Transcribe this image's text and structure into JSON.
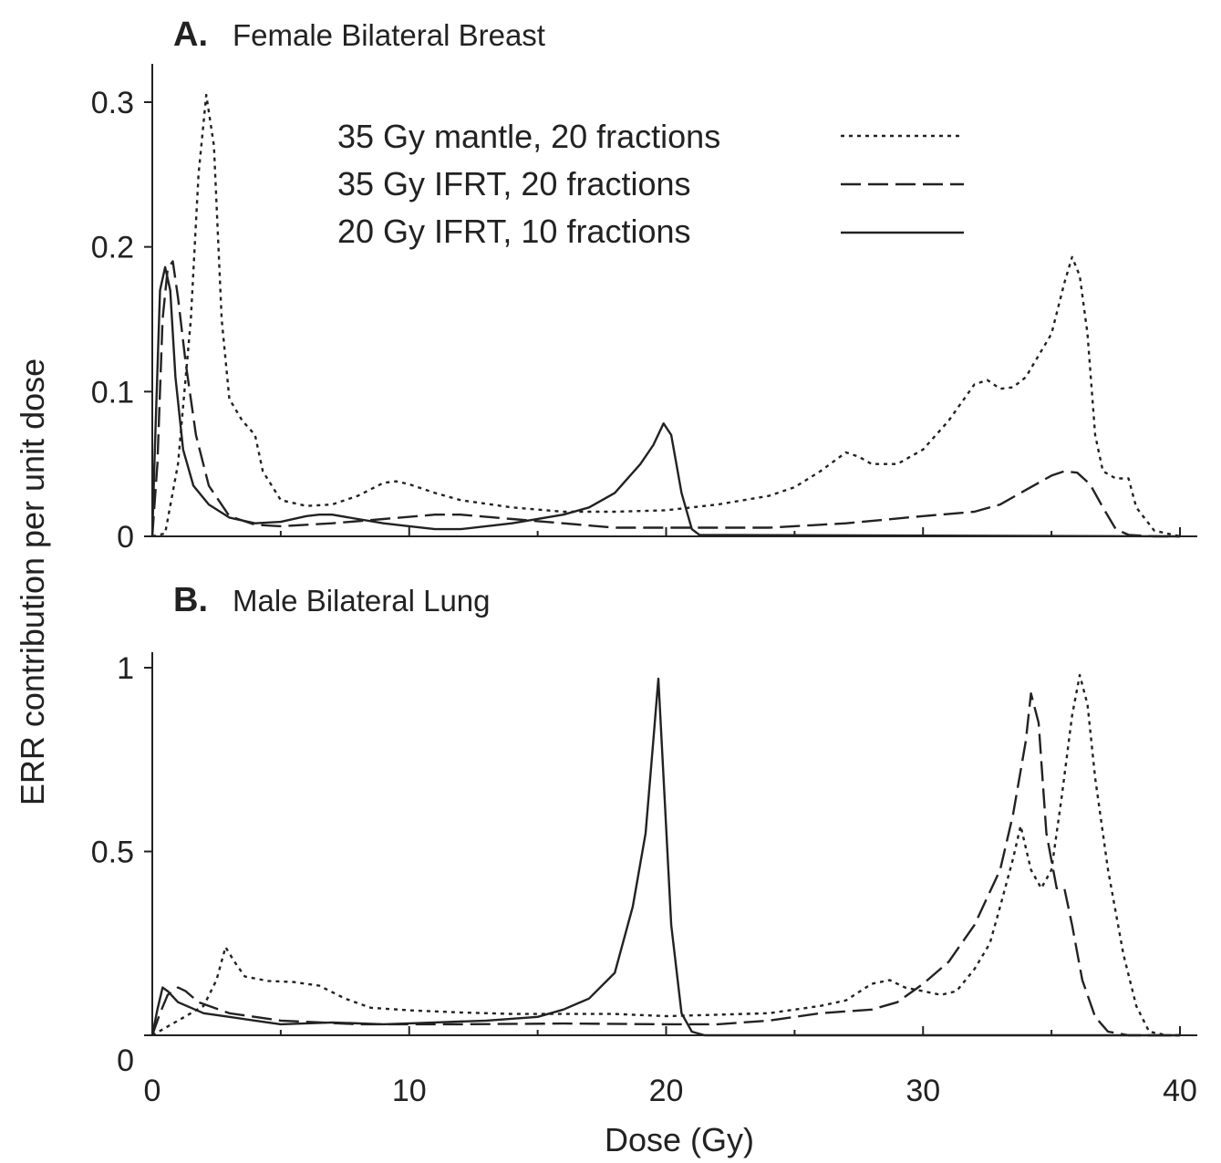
{
  "figure": {
    "ylabel": "ERR contribution  per unit dose",
    "xlabel": "Dose (Gy)"
  },
  "legend": [
    {
      "label": "35 Gy mantle, 20 fractions",
      "style": "dotted"
    },
    {
      "label": "35 Gy IFRT, 20 fractions",
      "style": "dashed"
    },
    {
      "label": "20 Gy IFRT, 10 fractions",
      "style": "solid"
    }
  ],
  "chart_data": [
    {
      "type": "line",
      "panel_letter": "A.",
      "title": "Female Bilateral Breast",
      "xlim": [
        0,
        40
      ],
      "ylim": [
        0,
        0.32
      ],
      "yticks": [
        "0",
        "0.1",
        "0.2",
        "0.3"
      ],
      "ytick_values": [
        0,
        0.1,
        0.2,
        0.3
      ],
      "series": [
        {
          "name": "35 Gy mantle, 20 fractions",
          "style": "dotted",
          "points": [
            [
              0,
              0
            ],
            [
              0.5,
              0.002
            ],
            [
              1,
              0.05
            ],
            [
              1.5,
              0.15
            ],
            [
              1.8,
              0.25
            ],
            [
              2.1,
              0.305
            ],
            [
              2.4,
              0.27
            ],
            [
              2.7,
              0.15
            ],
            [
              3,
              0.095
            ],
            [
              3.5,
              0.08
            ],
            [
              4,
              0.07
            ],
            [
              4.3,
              0.045
            ],
            [
              5,
              0.025
            ],
            [
              6,
              0.021
            ],
            [
              7,
              0.022
            ],
            [
              8,
              0.028
            ],
            [
              9,
              0.037
            ],
            [
              9.5,
              0.038
            ],
            [
              10,
              0.036
            ],
            [
              11,
              0.03
            ],
            [
              12,
              0.025
            ],
            [
              14,
              0.02
            ],
            [
              16,
              0.017
            ],
            [
              18,
              0.017
            ],
            [
              20,
              0.018
            ],
            [
              22,
              0.022
            ],
            [
              24,
              0.028
            ],
            [
              25,
              0.034
            ],
            [
              26,
              0.045
            ],
            [
              27,
              0.058
            ],
            [
              27.5,
              0.055
            ],
            [
              28,
              0.05
            ],
            [
              29,
              0.05
            ],
            [
              30,
              0.06
            ],
            [
              31,
              0.08
            ],
            [
              32,
              0.105
            ],
            [
              32.5,
              0.108
            ],
            [
              33,
              0.102
            ],
            [
              33.5,
              0.103
            ],
            [
              34,
              0.11
            ],
            [
              35,
              0.14
            ],
            [
              35.5,
              0.175
            ],
            [
              35.8,
              0.193
            ],
            [
              36.1,
              0.18
            ],
            [
              36.4,
              0.14
            ],
            [
              36.7,
              0.07
            ],
            [
              37,
              0.045
            ],
            [
              37.5,
              0.04
            ],
            [
              38,
              0.04
            ],
            [
              38.3,
              0.02
            ],
            [
              39,
              0.004
            ],
            [
              40,
              0
            ]
          ]
        },
        {
          "name": "35 Gy IFRT, 20 fractions",
          "style": "dashed",
          "points": [
            [
              0,
              0
            ],
            [
              0.2,
              0.05
            ],
            [
              0.4,
              0.15
            ],
            [
              0.6,
              0.185
            ],
            [
              0.8,
              0.19
            ],
            [
              1,
              0.165
            ],
            [
              1.3,
              0.12
            ],
            [
              1.7,
              0.07
            ],
            [
              2.2,
              0.035
            ],
            [
              3,
              0.014
            ],
            [
              4,
              0.008
            ],
            [
              5,
              0.007
            ],
            [
              7,
              0.009
            ],
            [
              9,
              0.012
            ],
            [
              11,
              0.015
            ],
            [
              12,
              0.015
            ],
            [
              14,
              0.012
            ],
            [
              16,
              0.009
            ],
            [
              18,
              0.006
            ],
            [
              20,
              0.006
            ],
            [
              24,
              0.006
            ],
            [
              27,
              0.009
            ],
            [
              30,
              0.014
            ],
            [
              32,
              0.017
            ],
            [
              33,
              0.022
            ],
            [
              34,
              0.032
            ],
            [
              35,
              0.042
            ],
            [
              35.5,
              0.045
            ],
            [
              36,
              0.044
            ],
            [
              36.5,
              0.036
            ],
            [
              37,
              0.02
            ],
            [
              37.5,
              0.005
            ],
            [
              38,
              0.001
            ],
            [
              39,
              0
            ],
            [
              40,
              0
            ]
          ]
        },
        {
          "name": "20 Gy IFRT, 10 fractions",
          "style": "solid",
          "points": [
            [
              0,
              0
            ],
            [
              0.1,
              0.06
            ],
            [
              0.3,
              0.17
            ],
            [
              0.5,
              0.186
            ],
            [
              0.7,
              0.17
            ],
            [
              0.9,
              0.11
            ],
            [
              1.2,
              0.06
            ],
            [
              1.6,
              0.035
            ],
            [
              2.2,
              0.022
            ],
            [
              3,
              0.013
            ],
            [
              4,
              0.009
            ],
            [
              5,
              0.01
            ],
            [
              6,
              0.014
            ],
            [
              6.5,
              0.015
            ],
            [
              7,
              0.015
            ],
            [
              8,
              0.012
            ],
            [
              9,
              0.009
            ],
            [
              10,
              0.007
            ],
            [
              11,
              0.005
            ],
            [
              12,
              0.005
            ],
            [
              14,
              0.009
            ],
            [
              16,
              0.015
            ],
            [
              17,
              0.02
            ],
            [
              18,
              0.03
            ],
            [
              19,
              0.05
            ],
            [
              19.5,
              0.063
            ],
            [
              19.9,
              0.078
            ],
            [
              20.2,
              0.07
            ],
            [
              20.6,
              0.03
            ],
            [
              21,
              0.005
            ],
            [
              21.3,
              0.001
            ],
            [
              40,
              0
            ]
          ]
        }
      ]
    },
    {
      "type": "line",
      "panel_letter": "B.",
      "title": "Male Bilateral Lung",
      "xlim": [
        0,
        40
      ],
      "ylim": [
        0,
        1.0
      ],
      "xticks": [
        "0",
        "10",
        "20",
        "30",
        "40"
      ],
      "xtick_values": [
        0,
        10,
        20,
        30,
        40
      ],
      "yticks": [
        "0",
        "0.5",
        "1"
      ],
      "ytick_values": [
        0,
        0.5,
        1
      ],
      "series": [
        {
          "name": "35 Gy mantle, 20 fractions",
          "style": "dotted",
          "points": [
            [
              0,
              0
            ],
            [
              1,
              0.04
            ],
            [
              2,
              0.08
            ],
            [
              2.5,
              0.15
            ],
            [
              2.85,
              0.24
            ],
            [
              3.2,
              0.2
            ],
            [
              3.6,
              0.16
            ],
            [
              4.5,
              0.148
            ],
            [
              5.5,
              0.145
            ],
            [
              6.5,
              0.135
            ],
            [
              7.5,
              0.1
            ],
            [
              8.5,
              0.075
            ],
            [
              10,
              0.068
            ],
            [
              12,
              0.062
            ],
            [
              14,
              0.058
            ],
            [
              16,
              0.058
            ],
            [
              18,
              0.058
            ],
            [
              20,
              0.052
            ],
            [
              22,
              0.056
            ],
            [
              24,
              0.06
            ],
            [
              26,
              0.08
            ],
            [
              27,
              0.095
            ],
            [
              28,
              0.14
            ],
            [
              28.7,
              0.15
            ],
            [
              29.3,
              0.13
            ],
            [
              30,
              0.12
            ],
            [
              30.7,
              0.11
            ],
            [
              31.3,
              0.12
            ],
            [
              32,
              0.18
            ],
            [
              32.6,
              0.25
            ],
            [
              33,
              0.35
            ],
            [
              33.5,
              0.48
            ],
            [
              33.8,
              0.57
            ],
            [
              34.2,
              0.45
            ],
            [
              34.6,
              0.4
            ],
            [
              35,
              0.45
            ],
            [
              35.4,
              0.65
            ],
            [
              35.8,
              0.87
            ],
            [
              36.1,
              0.98
            ],
            [
              36.4,
              0.9
            ],
            [
              36.7,
              0.7
            ],
            [
              37.2,
              0.45
            ],
            [
              37.8,
              0.22
            ],
            [
              38.3,
              0.08
            ],
            [
              38.8,
              0.01
            ],
            [
              39.5,
              0
            ],
            [
              40,
              0
            ]
          ]
        },
        {
          "name": "35 Gy IFRT, 20 fractions",
          "style": "dashed",
          "points": [
            [
              0,
              0
            ],
            [
              0.3,
              0.06
            ],
            [
              0.6,
              0.11
            ],
            [
              1,
              0.13
            ],
            [
              1.3,
              0.12
            ],
            [
              1.8,
              0.09
            ],
            [
              3,
              0.06
            ],
            [
              5,
              0.04
            ],
            [
              8,
              0.03
            ],
            [
              12,
              0.03
            ],
            [
              16,
              0.032
            ],
            [
              20,
              0.03
            ],
            [
              22,
              0.03
            ],
            [
              24,
              0.04
            ],
            [
              26,
              0.06
            ],
            [
              28,
              0.07
            ],
            [
              29,
              0.09
            ],
            [
              30,
              0.14
            ],
            [
              31,
              0.2
            ],
            [
              32,
              0.3
            ],
            [
              33,
              0.45
            ],
            [
              33.5,
              0.6
            ],
            [
              34,
              0.8
            ],
            [
              34.2,
              0.93
            ],
            [
              34.5,
              0.85
            ],
            [
              34.8,
              0.55
            ],
            [
              35.2,
              0.4
            ],
            [
              35.5,
              0.4
            ],
            [
              35.8,
              0.3
            ],
            [
              36.2,
              0.15
            ],
            [
              36.7,
              0.05
            ],
            [
              37.2,
              0.01
            ],
            [
              38,
              0
            ],
            [
              40,
              0
            ]
          ]
        },
        {
          "name": "20 Gy IFRT, 10 fractions",
          "style": "solid",
          "points": [
            [
              0,
              0
            ],
            [
              0.2,
              0.07
            ],
            [
              0.4,
              0.13
            ],
            [
              0.6,
              0.12
            ],
            [
              1,
              0.09
            ],
            [
              2,
              0.06
            ],
            [
              3,
              0.05
            ],
            [
              4,
              0.04
            ],
            [
              5,
              0.03
            ],
            [
              7,
              0.035
            ],
            [
              9,
              0.03
            ],
            [
              11,
              0.035
            ],
            [
              13,
              0.04
            ],
            [
              15,
              0.05
            ],
            [
              16,
              0.07
            ],
            [
              17,
              0.1
            ],
            [
              18,
              0.17
            ],
            [
              18.7,
              0.35
            ],
            [
              19.2,
              0.55
            ],
            [
              19.5,
              0.8
            ],
            [
              19.7,
              0.97
            ],
            [
              19.9,
              0.7
            ],
            [
              20.2,
              0.3
            ],
            [
              20.6,
              0.06
            ],
            [
              21,
              0.01
            ],
            [
              21.5,
              0
            ],
            [
              40,
              0
            ]
          ]
        }
      ]
    }
  ]
}
